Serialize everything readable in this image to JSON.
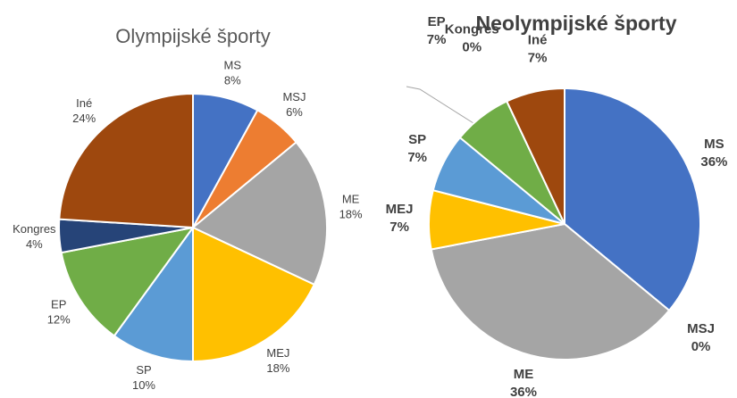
{
  "chart_data": [
    {
      "type": "pie",
      "title": "Olympijské športy",
      "categories": [
        "MS",
        "MSJ",
        "ME",
        "MEJ",
        "SP",
        "EP",
        "Kongres",
        "Iné"
      ],
      "values": [
        8,
        6,
        18,
        18,
        10,
        12,
        4,
        24
      ],
      "value_labels": [
        "8%",
        "6%",
        "18%",
        "18%",
        "10%",
        "12%",
        "4%",
        "24%"
      ],
      "colors": [
        "#4472c4",
        "#ed7d31",
        "#a5a5a5",
        "#ffc000",
        "#5b9bd5",
        "#70ad47",
        "#264478",
        "#9e480e"
      ]
    },
    {
      "type": "pie",
      "title": "Neolympijské športy",
      "categories": [
        "MS",
        "MSJ",
        "ME",
        "MEJ",
        "SP",
        "EP",
        "Kongres",
        "Iné"
      ],
      "values": [
        36,
        0,
        36,
        7,
        7,
        7,
        0,
        7
      ],
      "value_labels": [
        "36%",
        "0%",
        "36%",
        "7%",
        "7%",
        "7%",
        "0%",
        "7%"
      ],
      "colors": [
        "#4472c4",
        "#ed7d31",
        "#a5a5a5",
        "#ffc000",
        "#5b9bd5",
        "#70ad47",
        "#264478",
        "#9e480e"
      ]
    }
  ]
}
